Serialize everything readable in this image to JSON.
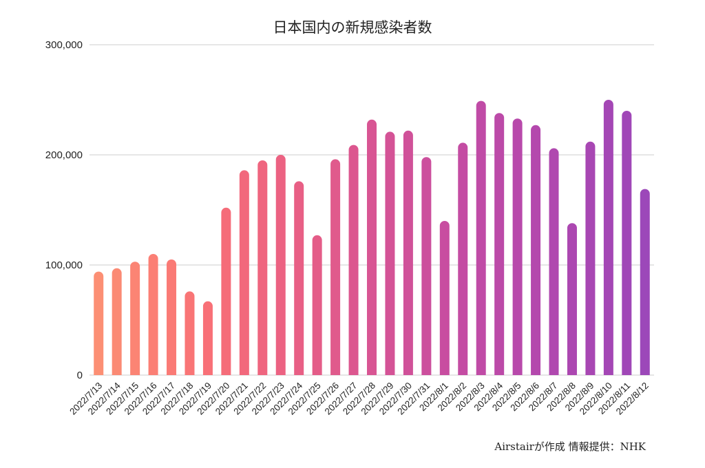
{
  "chart_data": {
    "type": "bar",
    "title": "日本国内の新規感染者数",
    "xlabel": "",
    "ylabel": "",
    "ylim": [
      0,
      300000
    ],
    "yticks": [
      0,
      100000,
      200000,
      300000
    ],
    "ytick_labels": [
      "0",
      "100,000",
      "200,000",
      "300,000"
    ],
    "grid": true,
    "categories": [
      "2022/7/13",
      "2022/7/14",
      "2022/7/15",
      "2022/7/16",
      "2022/7/17",
      "2022/7/18",
      "2022/7/19",
      "2022/7/20",
      "2022/7/21",
      "2022/7/22",
      "2022/7/23",
      "2022/7/24",
      "2022/7/25",
      "2022/7/26",
      "2022/7/27",
      "2022/7/28",
      "2022/7/29",
      "2022/7/30",
      "2022/7/31",
      "2022/8/1",
      "2022/8/2",
      "2022/8/3",
      "2022/8/4",
      "2022/8/5",
      "2022/8/6",
      "2022/8/7",
      "2022/8/8",
      "2022/8/9",
      "2022/8/10",
      "2022/8/11",
      "2022/8/12"
    ],
    "values": [
      94000,
      97000,
      103000,
      110000,
      105000,
      76000,
      67000,
      152000,
      186000,
      195000,
      200000,
      176000,
      127000,
      196000,
      209000,
      232000,
      221000,
      222000,
      198000,
      140000,
      211000,
      249000,
      238000,
      233000,
      227000,
      206000,
      138000,
      212000,
      250000,
      240000,
      169000
    ],
    "colors": [
      "#fc8f74",
      "#fb8a74",
      "#fb8474",
      "#fb7f75",
      "#fa7a75",
      "#f97576",
      "#f87077",
      "#f56c79",
      "#f2687c",
      "#ef657f",
      "#ec6282",
      "#e85f85",
      "#e45c88",
      "#e05a8c",
      "#dc578f",
      "#d85593",
      "#d45396",
      "#d05199",
      "#cc4f9d",
      "#c84da0",
      "#c44ca3",
      "#c04ba6",
      "#bc4aa8",
      "#b849ab",
      "#b448ad",
      "#b048af",
      "#ac47b1",
      "#a847b3",
      "#a447b5",
      "#a047b7",
      "#9c48b9"
    ]
  },
  "source_note": "Airstairが作成 情報提供：NHK"
}
